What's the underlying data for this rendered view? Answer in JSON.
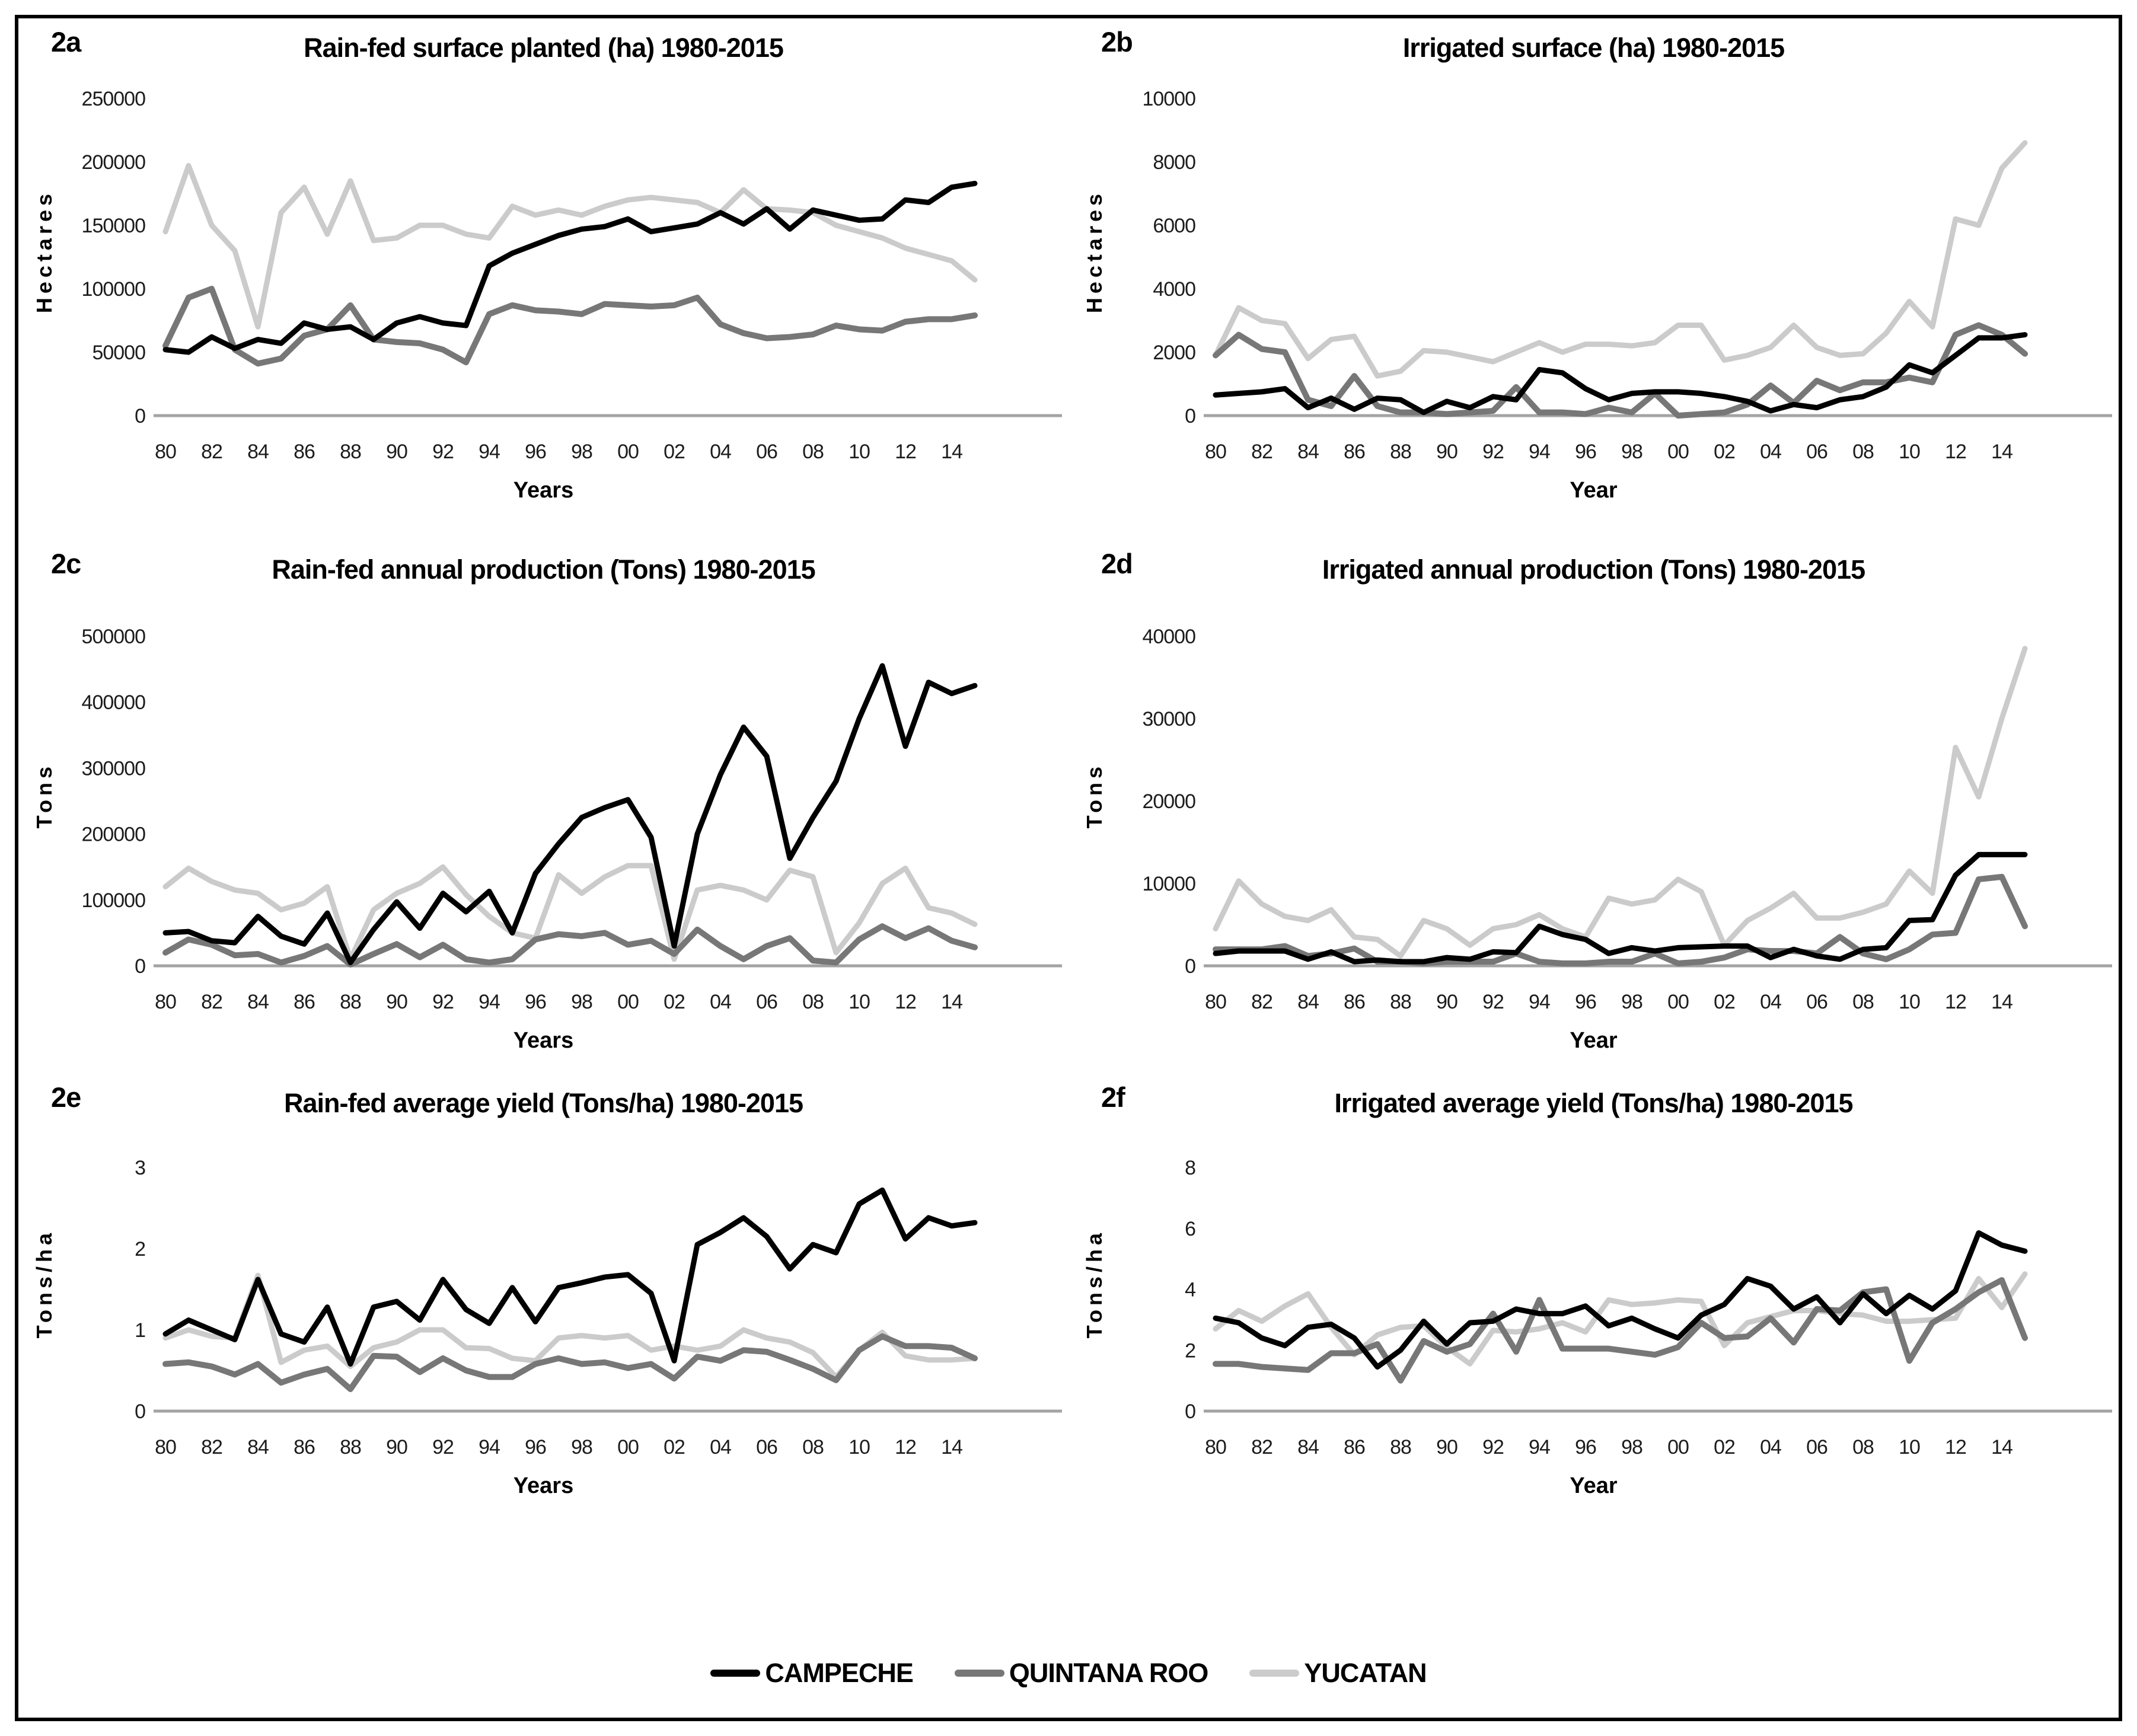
{
  "legend": [
    {
      "label": "CAMPECHE",
      "color": "#000000"
    },
    {
      "label": "QUINTANA ROO",
      "color": "#777777"
    },
    {
      "label": "YUCATAN",
      "color": "#cbcbcb"
    }
  ],
  "x_tick_labels": [
    "80",
    "82",
    "84",
    "86",
    "88",
    "90",
    "92",
    "94",
    "96",
    "98",
    "00",
    "02",
    "04",
    "06",
    "08",
    "10",
    "12",
    "14"
  ],
  "chart_data": [
    {
      "id": "2a",
      "panel_label": "2a",
      "type": "line",
      "title": "Rain-fed surface planted (ha) 1980-2015",
      "xlabel": "Years",
      "ylabel": "Hectares",
      "ylim": [
        0,
        250000
      ],
      "yticks": [
        0,
        50000,
        100000,
        150000,
        200000,
        250000
      ],
      "x": [
        1980,
        1981,
        1982,
        1983,
        1984,
        1985,
        1986,
        1987,
        1988,
        1989,
        1990,
        1991,
        1992,
        1993,
        1994,
        1995,
        1996,
        1997,
        1998,
        1999,
        2000,
        2001,
        2002,
        2003,
        2004,
        2005,
        2006,
        2007,
        2008,
        2009,
        2010,
        2011,
        2012,
        2013,
        2014,
        2015
      ],
      "series": [
        {
          "name": "CAMPECHE",
          "values": [
            52000,
            50000,
            62000,
            53000,
            60000,
            57000,
            73000,
            68000,
            70000,
            60000,
            73000,
            78000,
            73000,
            71000,
            118000,
            128000,
            135000,
            142000,
            147000,
            149000,
            155000,
            145000,
            148000,
            151000,
            160000,
            151000,
            163000,
            147000,
            162000,
            158000,
            154000,
            155000,
            170000,
            168000,
            180000,
            183000
          ]
        },
        {
          "name": "QUINTANA ROO",
          "values": [
            55000,
            93000,
            100000,
            52000,
            41000,
            45000,
            63000,
            68000,
            87000,
            60000,
            58000,
            57000,
            52000,
            42000,
            80000,
            87000,
            83000,
            82000,
            80000,
            88000,
            87000,
            86000,
            87000,
            93000,
            72000,
            65000,
            61000,
            62000,
            64000,
            71000,
            68000,
            67000,
            74000,
            76000,
            76000,
            79000
          ]
        },
        {
          "name": "YUCATAN",
          "values": [
            145000,
            197000,
            150000,
            130000,
            70000,
            160000,
            180000,
            143000,
            185000,
            138000,
            140000,
            150000,
            150000,
            143000,
            140000,
            165000,
            158000,
            162000,
            158000,
            165000,
            170000,
            172000,
            170000,
            168000,
            160000,
            178000,
            163000,
            162000,
            160000,
            150000,
            145000,
            140000,
            132000,
            127000,
            122000,
            107000
          ]
        }
      ]
    },
    {
      "id": "2b",
      "panel_label": "2b",
      "type": "line",
      "title": "Irrigated surface (ha) 1980-2015",
      "xlabel": "Year",
      "ylabel": "Hectares",
      "ylim": [
        0,
        10000
      ],
      "yticks": [
        0,
        2000,
        4000,
        6000,
        8000,
        10000
      ],
      "x": [
        1980,
        1981,
        1982,
        1983,
        1984,
        1985,
        1986,
        1987,
        1988,
        1989,
        1990,
        1991,
        1992,
        1993,
        1994,
        1995,
        1996,
        1997,
        1998,
        1999,
        2000,
        2001,
        2002,
        2003,
        2004,
        2005,
        2006,
        2007,
        2008,
        2009,
        2010,
        2011,
        2012,
        2013,
        2014,
        2015
      ],
      "series": [
        {
          "name": "CAMPECHE",
          "values": [
            650,
            700,
            750,
            850,
            250,
            550,
            200,
            550,
            500,
            100,
            450,
            250,
            600,
            500,
            1450,
            1350,
            850,
            500,
            700,
            750,
            750,
            700,
            600,
            450,
            150,
            350,
            250,
            500,
            600,
            900,
            1600,
            1350,
            1900,
            2450,
            2450,
            2550
          ]
        },
        {
          "name": "QUINTANA ROO",
          "values": [
            1900,
            2550,
            2100,
            2000,
            500,
            300,
            1250,
            300,
            100,
            100,
            50,
            100,
            150,
            900,
            100,
            100,
            50,
            250,
            100,
            700,
            0,
            50,
            100,
            350,
            950,
            400,
            1100,
            800,
            1050,
            1050,
            1200,
            1050,
            2550,
            2850,
            2550,
            1950
          ]
        },
        {
          "name": "YUCATAN",
          "values": [
            1900,
            3400,
            3000,
            2900,
            1800,
            2400,
            2500,
            1250,
            1400,
            2050,
            2000,
            1850,
            1700,
            2000,
            2300,
            2000,
            2250,
            2250,
            2200,
            2300,
            2850,
            2850,
            1750,
            1900,
            2150,
            2850,
            2150,
            1900,
            1950,
            2600,
            3600,
            2800,
            6200,
            6000,
            7800,
            8600
          ]
        }
      ]
    },
    {
      "id": "2c",
      "panel_label": "2c",
      "type": "line",
      "title": "Rain-fed annual production (Tons) 1980-2015",
      "xlabel": "Years",
      "ylabel": "Tons",
      "ylim": [
        0,
        500000
      ],
      "yticks": [
        0,
        100000,
        200000,
        300000,
        400000,
        500000
      ],
      "x": [
        1980,
        1981,
        1982,
        1983,
        1984,
        1985,
        1986,
        1987,
        1988,
        1989,
        1990,
        1991,
        1992,
        1993,
        1994,
        1995,
        1996,
        1997,
        1998,
        1999,
        2000,
        2001,
        2002,
        2003,
        2004,
        2005,
        2006,
        2007,
        2008,
        2009,
        2010,
        2011,
        2012,
        2013,
        2014,
        2015
      ],
      "series": [
        {
          "name": "CAMPECHE",
          "values": [
            50000,
            52000,
            38000,
            35000,
            75000,
            45000,
            33000,
            80000,
            5000,
            55000,
            97000,
            57000,
            110000,
            82000,
            113000,
            50000,
            140000,
            185000,
            225000,
            240000,
            252000,
            195000,
            30000,
            200000,
            290000,
            362000,
            318000,
            163000,
            225000,
            280000,
            375000,
            455000,
            333000,
            430000,
            413000,
            425000
          ]
        },
        {
          "name": "QUINTANA ROO",
          "values": [
            20000,
            40000,
            32000,
            16000,
            18000,
            5000,
            15000,
            30000,
            2000,
            18000,
            33000,
            13000,
            32000,
            10000,
            5000,
            10000,
            40000,
            48000,
            45000,
            50000,
            32000,
            38000,
            18000,
            55000,
            30000,
            10000,
            30000,
            42000,
            8000,
            5000,
            40000,
            60000,
            42000,
            57000,
            38000,
            28000
          ]
        },
        {
          "name": "YUCATAN",
          "values": [
            120000,
            148000,
            128000,
            115000,
            110000,
            85000,
            95000,
            120000,
            10000,
            85000,
            110000,
            125000,
            150000,
            108000,
            75000,
            50000,
            42000,
            138000,
            110000,
            135000,
            152000,
            152000,
            10000,
            115000,
            122000,
            115000,
            100000,
            145000,
            135000,
            20000,
            65000,
            125000,
            148000,
            88000,
            80000,
            63000
          ]
        }
      ]
    },
    {
      "id": "2d",
      "panel_label": "2d",
      "type": "line",
      "title": "Irrigated annual production (Tons) 1980-2015",
      "xlabel": "Year",
      "ylabel": "Tons",
      "ylim": [
        0,
        40000
      ],
      "yticks": [
        0,
        10000,
        20000,
        30000,
        40000
      ],
      "x": [
        1980,
        1981,
        1982,
        1983,
        1984,
        1985,
        1986,
        1987,
        1988,
        1989,
        1990,
        1991,
        1992,
        1993,
        1994,
        1995,
        1996,
        1997,
        1998,
        1999,
        2000,
        2001,
        2002,
        2003,
        2004,
        2005,
        2006,
        2007,
        2008,
        2009,
        2010,
        2011,
        2012,
        2013,
        2014,
        2015
      ],
      "series": [
        {
          "name": "CAMPECHE",
          "values": [
            1500,
            1800,
            1800,
            1800,
            800,
            1700,
            500,
            700,
            500,
            500,
            1000,
            800,
            1700,
            1600,
            4800,
            3800,
            3200,
            1500,
            2200,
            1800,
            2200,
            2300,
            2400,
            2400,
            1000,
            2000,
            1200,
            800,
            2000,
            2200,
            5500,
            5600,
            11000,
            13500,
            13500,
            13500
          ]
        },
        {
          "name": "QUINTANA ROO",
          "values": [
            2000,
            2000,
            2000,
            2400,
            1200,
            1500,
            2100,
            500,
            500,
            300,
            500,
            500,
            500,
            1500,
            500,
            300,
            300,
            500,
            500,
            1500,
            300,
            500,
            1000,
            2000,
            1800,
            1800,
            1500,
            3500,
            1500,
            800,
            2000,
            3800,
            4000,
            10500,
            10800,
            4800
          ]
        },
        {
          "name": "YUCATAN",
          "values": [
            4500,
            10300,
            7500,
            6000,
            5500,
            6800,
            3500,
            3200,
            1200,
            5500,
            4500,
            2500,
            4500,
            5000,
            6200,
            4500,
            3500,
            8200,
            7500,
            8000,
            10500,
            9000,
            2500,
            5500,
            7000,
            8800,
            5800,
            5800,
            6500,
            7500,
            11500,
            8800,
            26500,
            20500,
            30000,
            38500
          ]
        }
      ]
    },
    {
      "id": "2e",
      "panel_label": "2e",
      "type": "line",
      "title": "Rain-fed average  yield (Tons/ha) 1980-2015",
      "xlabel": "Years",
      "ylabel": "Tons/ha",
      "ylim": [
        0,
        3
      ],
      "yticks": [
        0,
        1,
        2,
        3
      ],
      "x": [
        1980,
        1981,
        1982,
        1983,
        1984,
        1985,
        1986,
        1987,
        1988,
        1989,
        1990,
        1991,
        1992,
        1993,
        1994,
        1995,
        1996,
        1997,
        1998,
        1999,
        2000,
        2001,
        2002,
        2003,
        2004,
        2005,
        2006,
        2007,
        2008,
        2009,
        2010,
        2011,
        2012,
        2013,
        2014,
        2015
      ],
      "series": [
        {
          "name": "CAMPECHE",
          "values": [
            0.95,
            1.12,
            1.0,
            0.88,
            1.62,
            0.95,
            0.85,
            1.28,
            0.58,
            1.28,
            1.35,
            1.12,
            1.62,
            1.25,
            1.08,
            1.52,
            1.1,
            1.52,
            1.58,
            1.65,
            1.68,
            1.45,
            0.62,
            2.05,
            2.2,
            2.38,
            2.15,
            1.75,
            2.05,
            1.95,
            2.55,
            2.72,
            2.12,
            2.38,
            2.28,
            2.32
          ]
        },
        {
          "name": "QUINTANA ROO",
          "values": [
            0.58,
            0.6,
            0.55,
            0.45,
            0.58,
            0.35,
            0.45,
            0.52,
            0.27,
            0.68,
            0.67,
            0.48,
            0.65,
            0.5,
            0.42,
            0.42,
            0.58,
            0.65,
            0.58,
            0.6,
            0.53,
            0.58,
            0.4,
            0.67,
            0.62,
            0.75,
            0.73,
            0.63,
            0.52,
            0.38,
            0.75,
            0.92,
            0.8,
            0.8,
            0.78,
            0.65
          ]
        },
        {
          "name": "YUCATAN",
          "values": [
            0.9,
            1.0,
            0.92,
            0.9,
            1.67,
            0.6,
            0.75,
            0.8,
            0.55,
            0.78,
            0.85,
            1.0,
            1.0,
            0.78,
            0.77,
            0.65,
            0.62,
            0.9,
            0.93,
            0.9,
            0.93,
            0.75,
            0.8,
            0.75,
            0.8,
            1.0,
            0.9,
            0.85,
            0.72,
            0.42,
            0.75,
            0.97,
            0.68,
            0.63,
            0.63,
            0.65
          ]
        }
      ]
    },
    {
      "id": "2f",
      "panel_label": "2f",
      "type": "line",
      "title": "Irrigated average yield (Tons/ha) 1980-2015",
      "xlabel": "Year",
      "ylabel": "Tons/ha",
      "ylim": [
        0,
        8
      ],
      "yticks": [
        0,
        2,
        4,
        6,
        8
      ],
      "x": [
        1980,
        1981,
        1982,
        1983,
        1984,
        1985,
        1986,
        1987,
        1988,
        1989,
        1990,
        1991,
        1992,
        1993,
        1994,
        1995,
        1996,
        1997,
        1998,
        1999,
        2000,
        2001,
        2002,
        2003,
        2004,
        2005,
        2006,
        2007,
        2008,
        2009,
        2010,
        2011,
        2012,
        2013,
        2014,
        2015
      ],
      "series": [
        {
          "name": "CAMPECHE",
          "values": [
            3.05,
            2.9,
            2.4,
            2.15,
            2.75,
            2.85,
            2.4,
            1.45,
            2.0,
            2.95,
            2.2,
            2.9,
            2.95,
            3.35,
            3.2,
            3.2,
            3.45,
            2.8,
            3.05,
            2.7,
            2.4,
            3.15,
            3.5,
            4.35,
            4.1,
            3.35,
            3.75,
            2.9,
            3.85,
            3.2,
            3.8,
            3.35,
            3.95,
            5.85,
            5.45,
            5.25
          ]
        },
        {
          "name": "QUINTANA ROO",
          "values": [
            1.55,
            1.55,
            1.45,
            1.4,
            1.35,
            1.9,
            1.9,
            2.2,
            1.0,
            2.3,
            1.95,
            2.2,
            3.2,
            1.95,
            3.65,
            2.05,
            2.05,
            2.05,
            1.95,
            1.85,
            2.1,
            2.9,
            2.4,
            2.45,
            3.05,
            2.25,
            3.35,
            3.3,
            3.9,
            4.0,
            1.65,
            2.9,
            3.35,
            3.9,
            4.3,
            2.4
          ]
        },
        {
          "name": "YUCATAN",
          "values": [
            2.7,
            3.3,
            2.95,
            3.45,
            3.85,
            2.75,
            1.85,
            2.5,
            2.75,
            2.8,
            2.1,
            1.55,
            2.65,
            2.6,
            2.7,
            2.9,
            2.6,
            3.65,
            3.5,
            3.55,
            3.65,
            3.6,
            2.15,
            2.9,
            3.1,
            3.3,
            3.3,
            3.2,
            3.15,
            2.95,
            2.95,
            3.0,
            3.05,
            4.35,
            3.4,
            4.5
          ]
        }
      ]
    }
  ]
}
